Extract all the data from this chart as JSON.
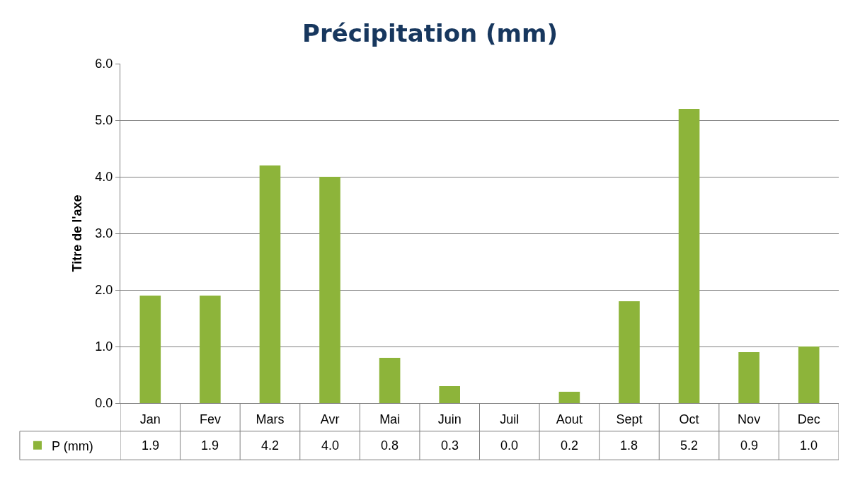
{
  "chart_data": {
    "type": "bar",
    "title": "Précipitation (mm)",
    "ylabel": "Titre de l'axe",
    "categories": [
      "Jan",
      "Fev",
      "Mars",
      "Avr",
      "Mai",
      "Juin",
      "Juil",
      "Aout",
      "Sept",
      "Oct",
      "Nov",
      "Dec"
    ],
    "series": [
      {
        "name": "P (mm)",
        "color": "#8db43a",
        "values": [
          1.9,
          1.9,
          4.2,
          4.0,
          0.8,
          0.3,
          0.0,
          0.2,
          1.8,
          5.2,
          0.9,
          1.0
        ],
        "value_labels": [
          "1.9",
          "1.9",
          "4.2",
          "4.0",
          "0.8",
          "0.3",
          "0.0",
          "0.2",
          "1.8",
          "5.2",
          "0.9",
          "1.0"
        ]
      }
    ],
    "ylim": [
      0,
      6
    ],
    "yticks": [
      {
        "value": 0,
        "label": "0.0"
      },
      {
        "value": 1,
        "label": "1.0"
      },
      {
        "value": 2,
        "label": "2.0"
      },
      {
        "value": 3,
        "label": "3.0"
      },
      {
        "value": 4,
        "label": "4.0"
      },
      {
        "value": 5,
        "label": "5.0"
      },
      {
        "value": 6,
        "label": "6.0"
      }
    ],
    "grid": "y",
    "legend": "bottom left"
  }
}
